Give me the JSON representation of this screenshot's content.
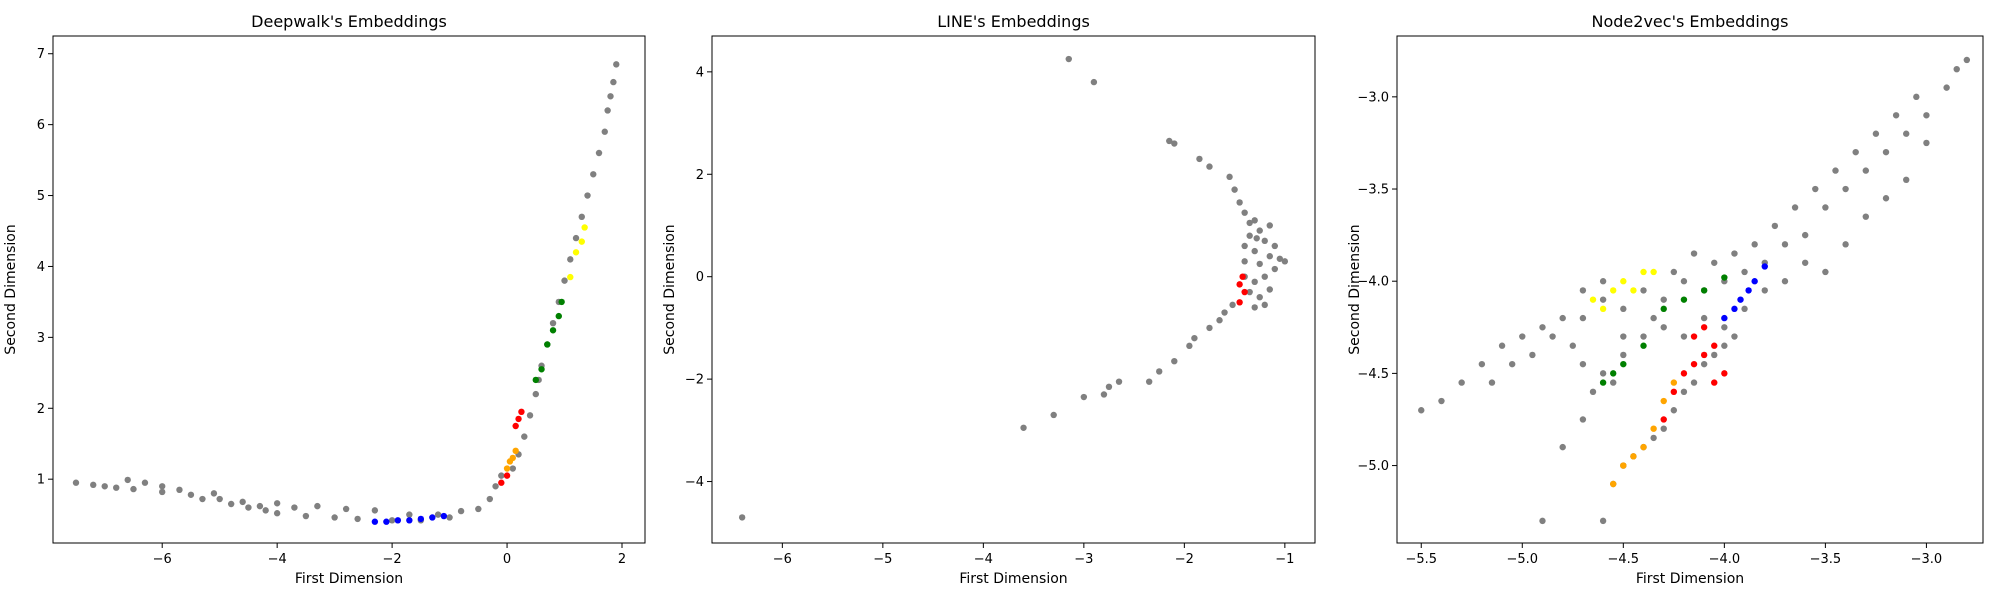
{
  "chart_data": [
    {
      "type": "scatter",
      "title": "Deepwalk's Embeddings",
      "xlabel": "First Dimension",
      "ylabel": "Second Dimension",
      "xlim": [
        -7.9,
        2.4
      ],
      "ylim": [
        0.1,
        7.25
      ],
      "xticks": [
        -6,
        -4,
        -2,
        0,
        2
      ],
      "yticks": [
        1,
        2,
        3,
        4,
        5,
        6,
        7
      ],
      "xtick_labels": [
        "−6",
        "−4",
        "−2",
        "0",
        "2"
      ],
      "ytick_labels": [
        "1",
        "2",
        "3",
        "4",
        "5",
        "6",
        "7"
      ],
      "background": {
        "color": "#808080",
        "points": [
          [
            -7.5,
            0.95
          ],
          [
            -7.2,
            0.92
          ],
          [
            -7.0,
            0.9
          ],
          [
            -6.8,
            0.88
          ],
          [
            -6.5,
            0.86
          ],
          [
            -6.6,
            0.99
          ],
          [
            -6.3,
            0.95
          ],
          [
            -6.0,
            0.82
          ],
          [
            -6.0,
            0.9
          ],
          [
            -5.7,
            0.85
          ],
          [
            -5.5,
            0.78
          ],
          [
            -5.3,
            0.72
          ],
          [
            -5.1,
            0.8
          ],
          [
            -5.0,
            0.72
          ],
          [
            -4.8,
            0.65
          ],
          [
            -4.6,
            0.68
          ],
          [
            -4.5,
            0.6
          ],
          [
            -4.3,
            0.62
          ],
          [
            -4.2,
            0.56
          ],
          [
            -4.0,
            0.66
          ],
          [
            -4.0,
            0.52
          ],
          [
            -3.7,
            0.6
          ],
          [
            -3.5,
            0.48
          ],
          [
            -3.3,
            0.62
          ],
          [
            -3.0,
            0.46
          ],
          [
            -2.8,
            0.58
          ],
          [
            -2.6,
            0.44
          ],
          [
            -2.3,
            0.56
          ],
          [
            -2.0,
            0.42
          ],
          [
            -1.7,
            0.5
          ],
          [
            -1.5,
            0.42
          ],
          [
            -1.2,
            0.5
          ],
          [
            -1.0,
            0.46
          ],
          [
            -0.8,
            0.55
          ],
          [
            -0.5,
            0.58
          ],
          [
            -0.3,
            0.72
          ],
          [
            -0.2,
            0.9
          ],
          [
            -0.1,
            1.05
          ],
          [
            0.1,
            1.15
          ],
          [
            0.2,
            1.35
          ],
          [
            0.3,
            1.6
          ],
          [
            0.4,
            1.9
          ],
          [
            0.5,
            2.2
          ],
          [
            0.55,
            2.4
          ],
          [
            0.6,
            2.6
          ],
          [
            0.7,
            2.9
          ],
          [
            0.8,
            3.2
          ],
          [
            0.9,
            3.5
          ],
          [
            1.0,
            3.8
          ],
          [
            1.1,
            4.1
          ],
          [
            1.2,
            4.4
          ],
          [
            1.3,
            4.7
          ],
          [
            1.4,
            5.0
          ],
          [
            1.5,
            5.3
          ],
          [
            1.6,
            5.6
          ],
          [
            1.7,
            5.9
          ],
          [
            1.75,
            6.2
          ],
          [
            1.8,
            6.4
          ],
          [
            1.85,
            6.6
          ],
          [
            1.9,
            6.85
          ]
        ]
      },
      "series": [
        {
          "color": "#0000ff",
          "points": [
            [
              -2.3,
              0.4
            ],
            [
              -2.1,
              0.4
            ],
            [
              -1.9,
              0.42
            ],
            [
              -1.7,
              0.42
            ],
            [
              -1.5,
              0.44
            ],
            [
              -1.3,
              0.46
            ],
            [
              -1.1,
              0.48
            ]
          ]
        },
        {
          "color": "#ff0000",
          "points": [
            [
              -0.1,
              0.95
            ],
            [
              0.0,
              1.05
            ],
            [
              0.15,
              1.75
            ],
            [
              0.2,
              1.85
            ],
            [
              0.25,
              1.95
            ]
          ]
        },
        {
          "color": "#ffa500",
          "points": [
            [
              0.0,
              1.15
            ],
            [
              0.05,
              1.25
            ],
            [
              0.1,
              1.3
            ],
            [
              0.15,
              1.4
            ]
          ]
        },
        {
          "color": "#008000",
          "points": [
            [
              0.5,
              2.4
            ],
            [
              0.6,
              2.55
            ],
            [
              0.7,
              2.9
            ],
            [
              0.8,
              3.1
            ],
            [
              0.9,
              3.3
            ],
            [
              0.95,
              3.5
            ]
          ]
        },
        {
          "color": "#ffff00",
          "points": [
            [
              1.1,
              3.85
            ],
            [
              1.2,
              4.2
            ],
            [
              1.3,
              4.35
            ],
            [
              1.35,
              4.55
            ]
          ]
        }
      ]
    },
    {
      "type": "scatter",
      "title": "LINE's Embeddings",
      "xlabel": "First Dimension",
      "ylabel": "Second Dimension",
      "xlim": [
        -6.7,
        -0.7
      ],
      "ylim": [
        -5.2,
        4.7
      ],
      "xticks": [
        -6,
        -5,
        -4,
        -3,
        -2,
        -1
      ],
      "yticks": [
        -4,
        -2,
        0,
        2,
        4
      ],
      "xtick_labels": [
        "−6",
        "−5",
        "−4",
        "−3",
        "−2",
        "−1"
      ],
      "ytick_labels": [
        "−4",
        "−2",
        "0",
        "2",
        "4"
      ],
      "background": {
        "color": "#808080",
        "points": [
          [
            -6.4,
            -4.7
          ],
          [
            -3.6,
            -2.95
          ],
          [
            -3.3,
            -2.7
          ],
          [
            -3.0,
            -2.35
          ],
          [
            -2.8,
            -2.3
          ],
          [
            -2.75,
            -2.15
          ],
          [
            -2.65,
            -2.05
          ],
          [
            -2.35,
            -2.05
          ],
          [
            -2.25,
            -1.85
          ],
          [
            -2.1,
            -1.65
          ],
          [
            -1.95,
            -1.35
          ],
          [
            -1.9,
            -1.2
          ],
          [
            -1.75,
            -1.0
          ],
          [
            -1.65,
            -0.85
          ],
          [
            -1.6,
            -0.7
          ],
          [
            -1.52,
            -0.55
          ],
          [
            -3.15,
            4.25
          ],
          [
            -2.9,
            3.8
          ],
          [
            -2.15,
            2.65
          ],
          [
            -2.1,
            2.6
          ],
          [
            -1.85,
            2.3
          ],
          [
            -1.75,
            2.15
          ],
          [
            -1.55,
            1.95
          ],
          [
            -1.5,
            1.7
          ],
          [
            -1.45,
            1.45
          ],
          [
            -1.4,
            1.25
          ],
          [
            -1.35,
            1.05
          ],
          [
            -1.35,
            0.8
          ],
          [
            -1.4,
            0.6
          ],
          [
            -1.4,
            0.3
          ],
          [
            -1.4,
            0.0
          ],
          [
            -1.35,
            -0.3
          ],
          [
            -1.3,
            1.1
          ],
          [
            -1.25,
            0.9
          ],
          [
            -1.3,
            0.5
          ],
          [
            -1.25,
            0.25
          ],
          [
            -1.3,
            -0.1
          ],
          [
            -1.25,
            -0.4
          ],
          [
            -1.2,
            0.7
          ],
          [
            -1.15,
            0.4
          ],
          [
            -1.2,
            0.0
          ],
          [
            -1.15,
            -0.25
          ],
          [
            -1.15,
            1.0
          ],
          [
            -1.1,
            0.6
          ],
          [
            -1.1,
            0.15
          ],
          [
            -1.05,
            0.35
          ],
          [
            -1.2,
            -0.55
          ],
          [
            -1.3,
            -0.6
          ],
          [
            -1.0,
            0.3
          ],
          [
            -1.28,
            0.75
          ]
        ]
      },
      "series": [
        {
          "color": "#ff0000",
          "points": [
            [
              -1.45,
              -0.15
            ],
            [
              -1.42,
              0.0
            ],
            [
              -1.4,
              -0.3
            ],
            [
              -1.45,
              -0.5
            ]
          ]
        }
      ]
    },
    {
      "type": "scatter",
      "title": "Node2vec's Embeddings",
      "xlabel": "First Dimension",
      "ylabel": "Second Dimension",
      "xlim": [
        -5.62,
        -2.72
      ],
      "ylim": [
        -5.42,
        -2.67
      ],
      "xticks": [
        -5.5,
        -5.0,
        -4.5,
        -4.0,
        -3.5,
        -3.0
      ],
      "yticks": [
        -5.0,
        -4.5,
        -4.0,
        -3.5,
        -3.0
      ],
      "xtick_labels": [
        "−5.5",
        "−5.0",
        "−4.5",
        "−4.0",
        "−3.5",
        "−3.0"
      ],
      "ytick_labels": [
        "−5.0",
        "−4.5",
        "−4.0",
        "−3.5",
        "−3.0"
      ],
      "background": {
        "color": "#808080",
        "points": [
          [
            -5.5,
            -4.7
          ],
          [
            -5.4,
            -4.65
          ],
          [
            -5.3,
            -4.55
          ],
          [
            -5.2,
            -4.45
          ],
          [
            -5.1,
            -4.35
          ],
          [
            -5.0,
            -4.3
          ],
          [
            -4.9,
            -4.25
          ],
          [
            -4.8,
            -4.2
          ],
          [
            -4.7,
            -4.2
          ],
          [
            -4.6,
            -4.1
          ],
          [
            -4.5,
            -4.15
          ],
          [
            -4.4,
            -4.05
          ],
          [
            -4.3,
            -4.1
          ],
          [
            -4.2,
            -4.0
          ],
          [
            -4.1,
            -4.05
          ],
          [
            -4.0,
            -4.0
          ],
          [
            -3.9,
            -3.95
          ],
          [
            -3.8,
            -3.9
          ],
          [
            -3.7,
            -3.8
          ],
          [
            -3.6,
            -3.75
          ],
          [
            -3.5,
            -3.6
          ],
          [
            -3.4,
            -3.5
          ],
          [
            -3.3,
            -3.4
          ],
          [
            -3.2,
            -3.3
          ],
          [
            -3.1,
            -3.2
          ],
          [
            -3.0,
            -3.1
          ],
          [
            -2.9,
            -2.95
          ],
          [
            -2.85,
            -2.85
          ],
          [
            -2.8,
            -2.8
          ],
          [
            -4.6,
            -4.5
          ],
          [
            -4.5,
            -4.4
          ],
          [
            -4.4,
            -4.3
          ],
          [
            -4.3,
            -4.25
          ],
          [
            -4.2,
            -4.3
          ],
          [
            -4.1,
            -4.2
          ],
          [
            -4.0,
            -4.25
          ],
          [
            -3.9,
            -4.15
          ],
          [
            -3.8,
            -4.05
          ],
          [
            -3.7,
            -4.0
          ],
          [
            -3.6,
            -3.9
          ],
          [
            -3.5,
            -3.95
          ],
          [
            -3.4,
            -3.8
          ],
          [
            -3.3,
            -3.65
          ],
          [
            -3.2,
            -3.55
          ],
          [
            -3.1,
            -3.45
          ],
          [
            -3.0,
            -3.25
          ],
          [
            -4.6,
            -5.3
          ],
          [
            -4.55,
            -5.1
          ],
          [
            -4.5,
            -5.0
          ],
          [
            -4.45,
            -4.95
          ],
          [
            -4.4,
            -4.9
          ],
          [
            -4.35,
            -4.85
          ],
          [
            -4.3,
            -4.8
          ],
          [
            -4.25,
            -4.7
          ],
          [
            -4.2,
            -4.6
          ],
          [
            -4.15,
            -4.55
          ],
          [
            -4.1,
            -4.45
          ],
          [
            -4.05,
            -4.4
          ],
          [
            -4.0,
            -4.35
          ],
          [
            -3.95,
            -4.3
          ],
          [
            -4.9,
            -5.3
          ],
          [
            -4.8,
            -4.9
          ],
          [
            -4.7,
            -4.75
          ],
          [
            -4.65,
            -4.6
          ],
          [
            -4.55,
            -4.55
          ],
          [
            -4.5,
            -4.3
          ],
          [
            -4.35,
            -4.2
          ],
          [
            -4.25,
            -3.95
          ],
          [
            -4.15,
            -3.85
          ],
          [
            -4.05,
            -3.9
          ],
          [
            -3.95,
            -3.85
          ],
          [
            -3.85,
            -3.8
          ],
          [
            -3.75,
            -3.7
          ],
          [
            -3.65,
            -3.6
          ],
          [
            -3.55,
            -3.5
          ],
          [
            -3.45,
            -3.4
          ],
          [
            -3.35,
            -3.3
          ],
          [
            -3.25,
            -3.2
          ],
          [
            -3.15,
            -3.1
          ],
          [
            -3.05,
            -3.0
          ],
          [
            -4.7,
            -4.45
          ],
          [
            -4.75,
            -4.35
          ],
          [
            -4.85,
            -4.3
          ],
          [
            -4.95,
            -4.4
          ],
          [
            -5.05,
            -4.45
          ],
          [
            -5.15,
            -4.55
          ],
          [
            -4.6,
            -4.0
          ],
          [
            -4.7,
            -4.05
          ]
        ]
      },
      "series": [
        {
          "color": "#ffff00",
          "points": [
            [
              -4.65,
              -4.1
            ],
            [
              -4.6,
              -4.15
            ],
            [
              -4.55,
              -4.05
            ],
            [
              -4.5,
              -4.0
            ],
            [
              -4.45,
              -4.05
            ],
            [
              -4.4,
              -3.95
            ],
            [
              -4.35,
              -3.95
            ]
          ]
        },
        {
          "color": "#008000",
          "points": [
            [
              -4.6,
              -4.55
            ],
            [
              -4.55,
              -4.5
            ],
            [
              -4.5,
              -4.45
            ],
            [
              -4.4,
              -4.35
            ],
            [
              -4.3,
              -4.15
            ],
            [
              -4.2,
              -4.1
            ],
            [
              -4.1,
              -4.05
            ],
            [
              -4.0,
              -3.98
            ]
          ]
        },
        {
          "color": "#0000ff",
          "points": [
            [
              -4.0,
              -4.2
            ],
            [
              -3.95,
              -4.15
            ],
            [
              -3.92,
              -4.1
            ],
            [
              -3.88,
              -4.05
            ],
            [
              -3.85,
              -4.0
            ],
            [
              -3.8,
              -3.92
            ]
          ]
        },
        {
          "color": "#ff0000",
          "points": [
            [
              -4.3,
              -4.75
            ],
            [
              -4.25,
              -4.6
            ],
            [
              -4.2,
              -4.5
            ],
            [
              -4.15,
              -4.45
            ],
            [
              -4.1,
              -4.4
            ],
            [
              -4.05,
              -4.35
            ],
            [
              -4.15,
              -4.3
            ],
            [
              -4.05,
              -4.55
            ],
            [
              -4.0,
              -4.5
            ],
            [
              -4.1,
              -4.25
            ]
          ]
        },
        {
          "color": "#ffa500",
          "points": [
            [
              -4.55,
              -5.1
            ],
            [
              -4.5,
              -5.0
            ],
            [
              -4.45,
              -4.95
            ],
            [
              -4.4,
              -4.9
            ],
            [
              -4.35,
              -4.8
            ],
            [
              -4.3,
              -4.65
            ],
            [
              -4.25,
              -4.55
            ]
          ]
        }
      ]
    }
  ]
}
